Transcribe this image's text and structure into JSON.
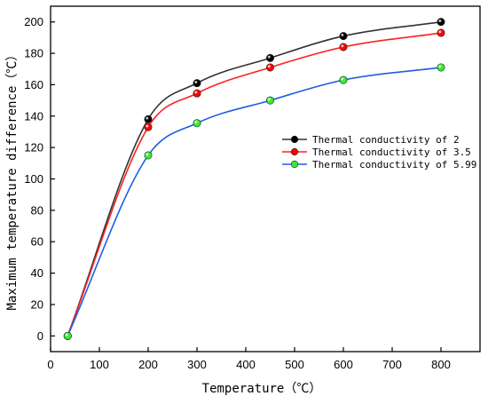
{
  "chart_data": {
    "type": "line",
    "title": "",
    "xlabel": "Temperature（℃）",
    "ylabel": "Maximum temperature difference（℃）",
    "xlim": [
      0,
      880
    ],
    "ylim": [
      -10,
      210
    ],
    "xticks": [
      0,
      100,
      200,
      300,
      400,
      500,
      600,
      700,
      800
    ],
    "yticks": [
      0,
      20,
      40,
      60,
      80,
      100,
      120,
      140,
      160,
      180,
      200
    ],
    "grid": false,
    "legend_position": "right",
    "x": [
      35,
      200,
      300,
      450,
      600,
      800
    ],
    "series": [
      {
        "name": "Thermal conductivity of 2",
        "color": "#333333",
        "marker_color": "#000000",
        "values": [
          0,
          138,
          161,
          177,
          191,
          200
        ]
      },
      {
        "name": "Thermal conductivity of 3.5",
        "color": "#ff2020",
        "marker_color": "#ff0000",
        "values": [
          0,
          133,
          154.5,
          171,
          184,
          193
        ]
      },
      {
        "name": "Thermal conductivity of 5.99",
        "color": "#1f5fe0",
        "marker_color": "#33ee33",
        "values": [
          0,
          115,
          135.5,
          150,
          163,
          171
        ]
      }
    ]
  }
}
